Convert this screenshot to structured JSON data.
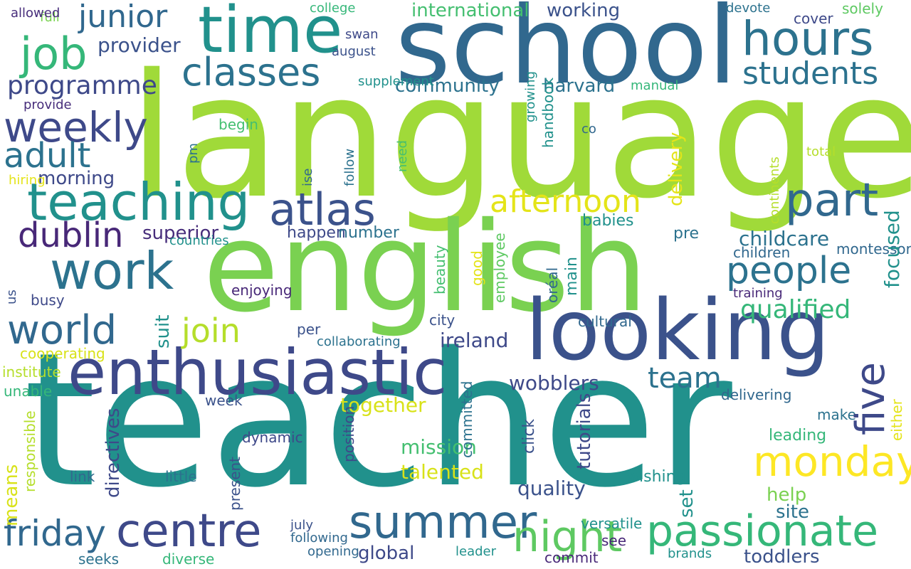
{
  "words": [
    {
      "text": "teacher",
      "color": "#21918c"
    },
    {
      "text": "language",
      "color": "#a0da39"
    },
    {
      "text": "english",
      "color": "#7ad151"
    },
    {
      "text": "school",
      "color": "#31688e"
    },
    {
      "text": "looking",
      "color": "#3b528b"
    },
    {
      "text": "enthusiastic",
      "color": "#3e4989"
    },
    {
      "text": "time",
      "color": "#21918c"
    },
    {
      "text": "passionate",
      "color": "#35b779"
    },
    {
      "text": "summer",
      "color": "#31688e"
    },
    {
      "text": "centre",
      "color": "#3e4989"
    },
    {
      "text": "teaching",
      "color": "#21918c"
    },
    {
      "text": "work",
      "color": "#2c728e"
    },
    {
      "text": "hours",
      "color": "#2c728e"
    },
    {
      "text": "monday",
      "color": "#fde725"
    },
    {
      "text": "atlas",
      "color": "#3b528b"
    },
    {
      "text": "classes",
      "color": "#2c728e"
    },
    {
      "text": "part",
      "color": "#31688e"
    },
    {
      "text": "people",
      "color": "#2c728e"
    },
    {
      "text": "world",
      "color": "#31688e"
    },
    {
      "text": "job",
      "color": "#35b779"
    },
    {
      "text": "weekly",
      "color": "#3e4989"
    },
    {
      "text": "junior",
      "color": "#31688e"
    },
    {
      "text": "students",
      "color": "#2c728e"
    },
    {
      "text": "afternoon",
      "color": "#e4e419"
    },
    {
      "text": "friday",
      "color": "#31688e"
    },
    {
      "text": "night",
      "color": "#5ec962"
    },
    {
      "text": "join",
      "color": "#b5de2b"
    },
    {
      "text": "adult",
      "color": "#2c728e"
    },
    {
      "text": "dublin",
      "color": "#482878"
    },
    {
      "text": "team",
      "color": "#2c728e"
    },
    {
      "text": "programme",
      "color": "#3e4989"
    },
    {
      "text": "qualified",
      "color": "#35b779"
    },
    {
      "text": "morning",
      "color": "#3e4989"
    },
    {
      "text": "international",
      "color": "#44bf70"
    },
    {
      "text": "provider",
      "color": "#3b528b"
    },
    {
      "text": "community",
      "color": "#2c728e"
    },
    {
      "text": "harvard",
      "color": "#2c728e"
    },
    {
      "text": "working",
      "color": "#3b528b"
    },
    {
      "text": "childcare",
      "color": "#2c728e"
    },
    {
      "text": "ireland",
      "color": "#3e4989"
    },
    {
      "text": "wobblers",
      "color": "#3e4989"
    },
    {
      "text": "talented",
      "color": "#d8e219"
    },
    {
      "text": "mission",
      "color": "#44bf70"
    },
    {
      "text": "together",
      "color": "#d8e219"
    },
    {
      "text": "quality",
      "color": "#3b528b"
    },
    {
      "text": "help",
      "color": "#7ad151"
    },
    {
      "text": "site",
      "color": "#2c728e"
    },
    {
      "text": "global",
      "color": "#3e4989"
    },
    {
      "text": "toddlers",
      "color": "#3b528b"
    },
    {
      "text": "superior",
      "color": "#472d7b"
    },
    {
      "text": "happen",
      "color": "#3e4989"
    },
    {
      "text": "number",
      "color": "#2c728e"
    },
    {
      "text": "babies",
      "color": "#21918c"
    },
    {
      "text": "pre",
      "color": "#2c728e"
    },
    {
      "text": "children",
      "color": "#31688e"
    },
    {
      "text": "montessori",
      "color": "#31688e"
    },
    {
      "text": "leading",
      "color": "#35b779"
    },
    {
      "text": "make",
      "color": "#2c728e"
    },
    {
      "text": "delivering",
      "color": "#31688e"
    },
    {
      "text": "wishing",
      "color": "#21918c"
    },
    {
      "text": "city",
      "color": "#3b528b"
    },
    {
      "text": "cultural",
      "color": "#31688e"
    },
    {
      "text": "per",
      "color": "#3b528b"
    },
    {
      "text": "collaborating",
      "color": "#2c728e"
    },
    {
      "text": "enjoying",
      "color": "#482878"
    },
    {
      "text": "busy",
      "color": "#3e4989"
    },
    {
      "text": "countries",
      "color": "#21918c"
    },
    {
      "text": "training",
      "color": "#482878"
    },
    {
      "text": "cooperating",
      "color": "#d8e219"
    },
    {
      "text": "institute",
      "color": "#b5de2b"
    },
    {
      "text": "unable",
      "color": "#35b779"
    },
    {
      "text": "week",
      "color": "#3b528b"
    },
    {
      "text": "link",
      "color": "#31688e"
    },
    {
      "text": "little",
      "color": "#2c728e"
    },
    {
      "text": "dynamic",
      "color": "#3e4989"
    },
    {
      "text": "july",
      "color": "#3b528b"
    },
    {
      "text": "following",
      "color": "#31688e"
    },
    {
      "text": "opening",
      "color": "#31688e"
    },
    {
      "text": "leader",
      "color": "#21918c"
    },
    {
      "text": "versatile",
      "color": "#21918c"
    },
    {
      "text": "see",
      "color": "#482878"
    },
    {
      "text": "commit",
      "color": "#482878"
    },
    {
      "text": "brands",
      "color": "#21918c"
    },
    {
      "text": "seeks",
      "color": "#2c728e"
    },
    {
      "text": "diverse",
      "color": "#35b779"
    },
    {
      "text": "full",
      "color": "#7ad151"
    },
    {
      "text": "allowed",
      "color": "#472d7b"
    },
    {
      "text": "college",
      "color": "#35b779"
    },
    {
      "text": "swan",
      "color": "#3e4989"
    },
    {
      "text": "august",
      "color": "#3b528b"
    },
    {
      "text": "supplement",
      "color": "#21918c"
    },
    {
      "text": "provide",
      "color": "#472d7b"
    },
    {
      "text": "begin",
      "color": "#44bf70"
    },
    {
      "text": "hiring",
      "color": "#e4e419"
    },
    {
      "text": "co",
      "color": "#31688e"
    },
    {
      "text": "manual",
      "color": "#35b779"
    },
    {
      "text": "devote",
      "color": "#2c728e"
    },
    {
      "text": "cover",
      "color": "#3e4989"
    },
    {
      "text": "solely",
      "color": "#5ec962"
    },
    {
      "text": "total",
      "color": "#b5de2b"
    },
    {
      "text": "five",
      "color": "#3e4989"
    },
    {
      "text": "focused",
      "color": "#21918c"
    },
    {
      "text": "delivery",
      "color": "#e4e419"
    },
    {
      "text": "tutorials",
      "color": "#3e4989"
    },
    {
      "text": "directives",
      "color": "#3e4989"
    },
    {
      "text": "means",
      "color": "#d8e219"
    },
    {
      "text": "set",
      "color": "#21918c"
    },
    {
      "text": "either",
      "color": "#e4e419"
    },
    {
      "text": "suit",
      "color": "#21918c"
    },
    {
      "text": "main",
      "color": "#21918c"
    },
    {
      "text": "good",
      "color": "#e4e419"
    },
    {
      "text": "beauty",
      "color": "#44bf70"
    },
    {
      "text": "employee",
      "color": "#5ec962"
    },
    {
      "text": "oréal",
      "color": "#31688e"
    },
    {
      "text": "us",
      "color": "#3b528b"
    },
    {
      "text": "responsible",
      "color": "#b5de2b"
    },
    {
      "text": "present",
      "color": "#3b528b"
    },
    {
      "text": "position",
      "color": "#3e4989"
    },
    {
      "text": "committed",
      "color": "#2c728e"
    },
    {
      "text": "click",
      "color": "#3b528b"
    },
    {
      "text": "pm",
      "color": "#2c728e"
    },
    {
      "text": "ise",
      "color": "#31688e"
    },
    {
      "text": "follow",
      "color": "#2c728e"
    },
    {
      "text": "need",
      "color": "#44bf70"
    },
    {
      "text": "growing",
      "color": "#21918c"
    },
    {
      "text": "handbook",
      "color": "#21918c"
    },
    {
      "text": "continents",
      "color": "#b5de2b"
    }
  ]
}
